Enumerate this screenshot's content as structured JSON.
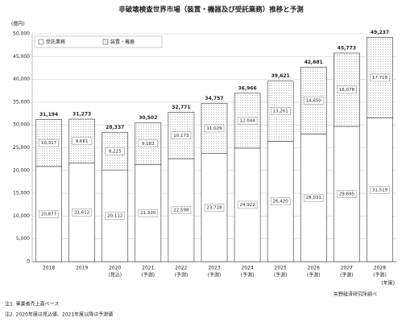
{
  "chart_data": {
    "type": "stacked-bar",
    "title": "非破壊検査世界市場（装置・機器及び受託業務）推移と予測",
    "y_unit": "(億円)",
    "x_unit": "(年度)",
    "source": "矢野経済研究所調べ",
    "notes": [
      "注1. 事業者売上高ベース",
      "注2. 2020年度は見込値、2021年度以降は予測値"
    ],
    "categories": [
      "2018",
      "2019",
      "2020",
      "2021",
      "2022",
      "2023",
      "2024",
      "2025",
      "2026",
      "2027",
      "2028"
    ],
    "category_notes": [
      null,
      null,
      "(見込)",
      "(予測)",
      "(予測)",
      "(予測)",
      "(予測)",
      "(予測)",
      "(予測)",
      "(予測)",
      "(予測)"
    ],
    "series": [
      {
        "name": "受託業務",
        "color": "#ffffff",
        "values": [
          20877,
          21612,
          20112,
          21320,
          22598,
          23728,
          24922,
          26420,
          28031,
          29695,
          31519
        ],
        "value_labels": [
          "20,877",
          "21,612",
          "20,112",
          "21,320",
          "22,598",
          "23,728",
          "24,922",
          "26,420",
          "28,031",
          "29,695",
          "31,519"
        ]
      },
      {
        "name": "装置・機器",
        "color": "#9a9a9a",
        "values": [
          10317,
          9661,
          8225,
          9182,
          10173,
          11029,
          12044,
          13201,
          14650,
          16078,
          17718
        ],
        "value_labels": [
          "10,317",
          "9,661",
          "8,225",
          "9,182",
          "10,173",
          "11,029",
          "12,044",
          "13,201",
          "14,650",
          "16,078",
          "17,718"
        ]
      }
    ],
    "totals": [
      31194,
      31273,
      28337,
      30502,
      32771,
      34757,
      36966,
      39621,
      42681,
      45773,
      49237
    ],
    "total_labels": [
      "31,194",
      "31,273",
      "28,337",
      "30,502",
      "32,771",
      "34,757",
      "36,966",
      "39,621",
      "42,681",
      "45,773",
      "49,237"
    ],
    "ylim": [
      0,
      50000
    ],
    "yticks": [
      0,
      {
        "value": 5000,
        "label": "5,000"
      },
      {
        "value": 10000,
        "label": "10,000"
      },
      {
        "value": 15000,
        "label": "15,000"
      },
      {
        "value": 20000,
        "label": "20,000"
      },
      {
        "value": 25000,
        "label": "25,000"
      },
      {
        "value": 30000,
        "label": "30,000"
      },
      {
        "value": 35000,
        "label": "35,000"
      },
      {
        "value": 40000,
        "label": "40,000"
      },
      {
        "value": 45000,
        "label": "45,000"
      },
      {
        "value": 50000,
        "label": "50,000"
      }
    ],
    "grid": true
  }
}
